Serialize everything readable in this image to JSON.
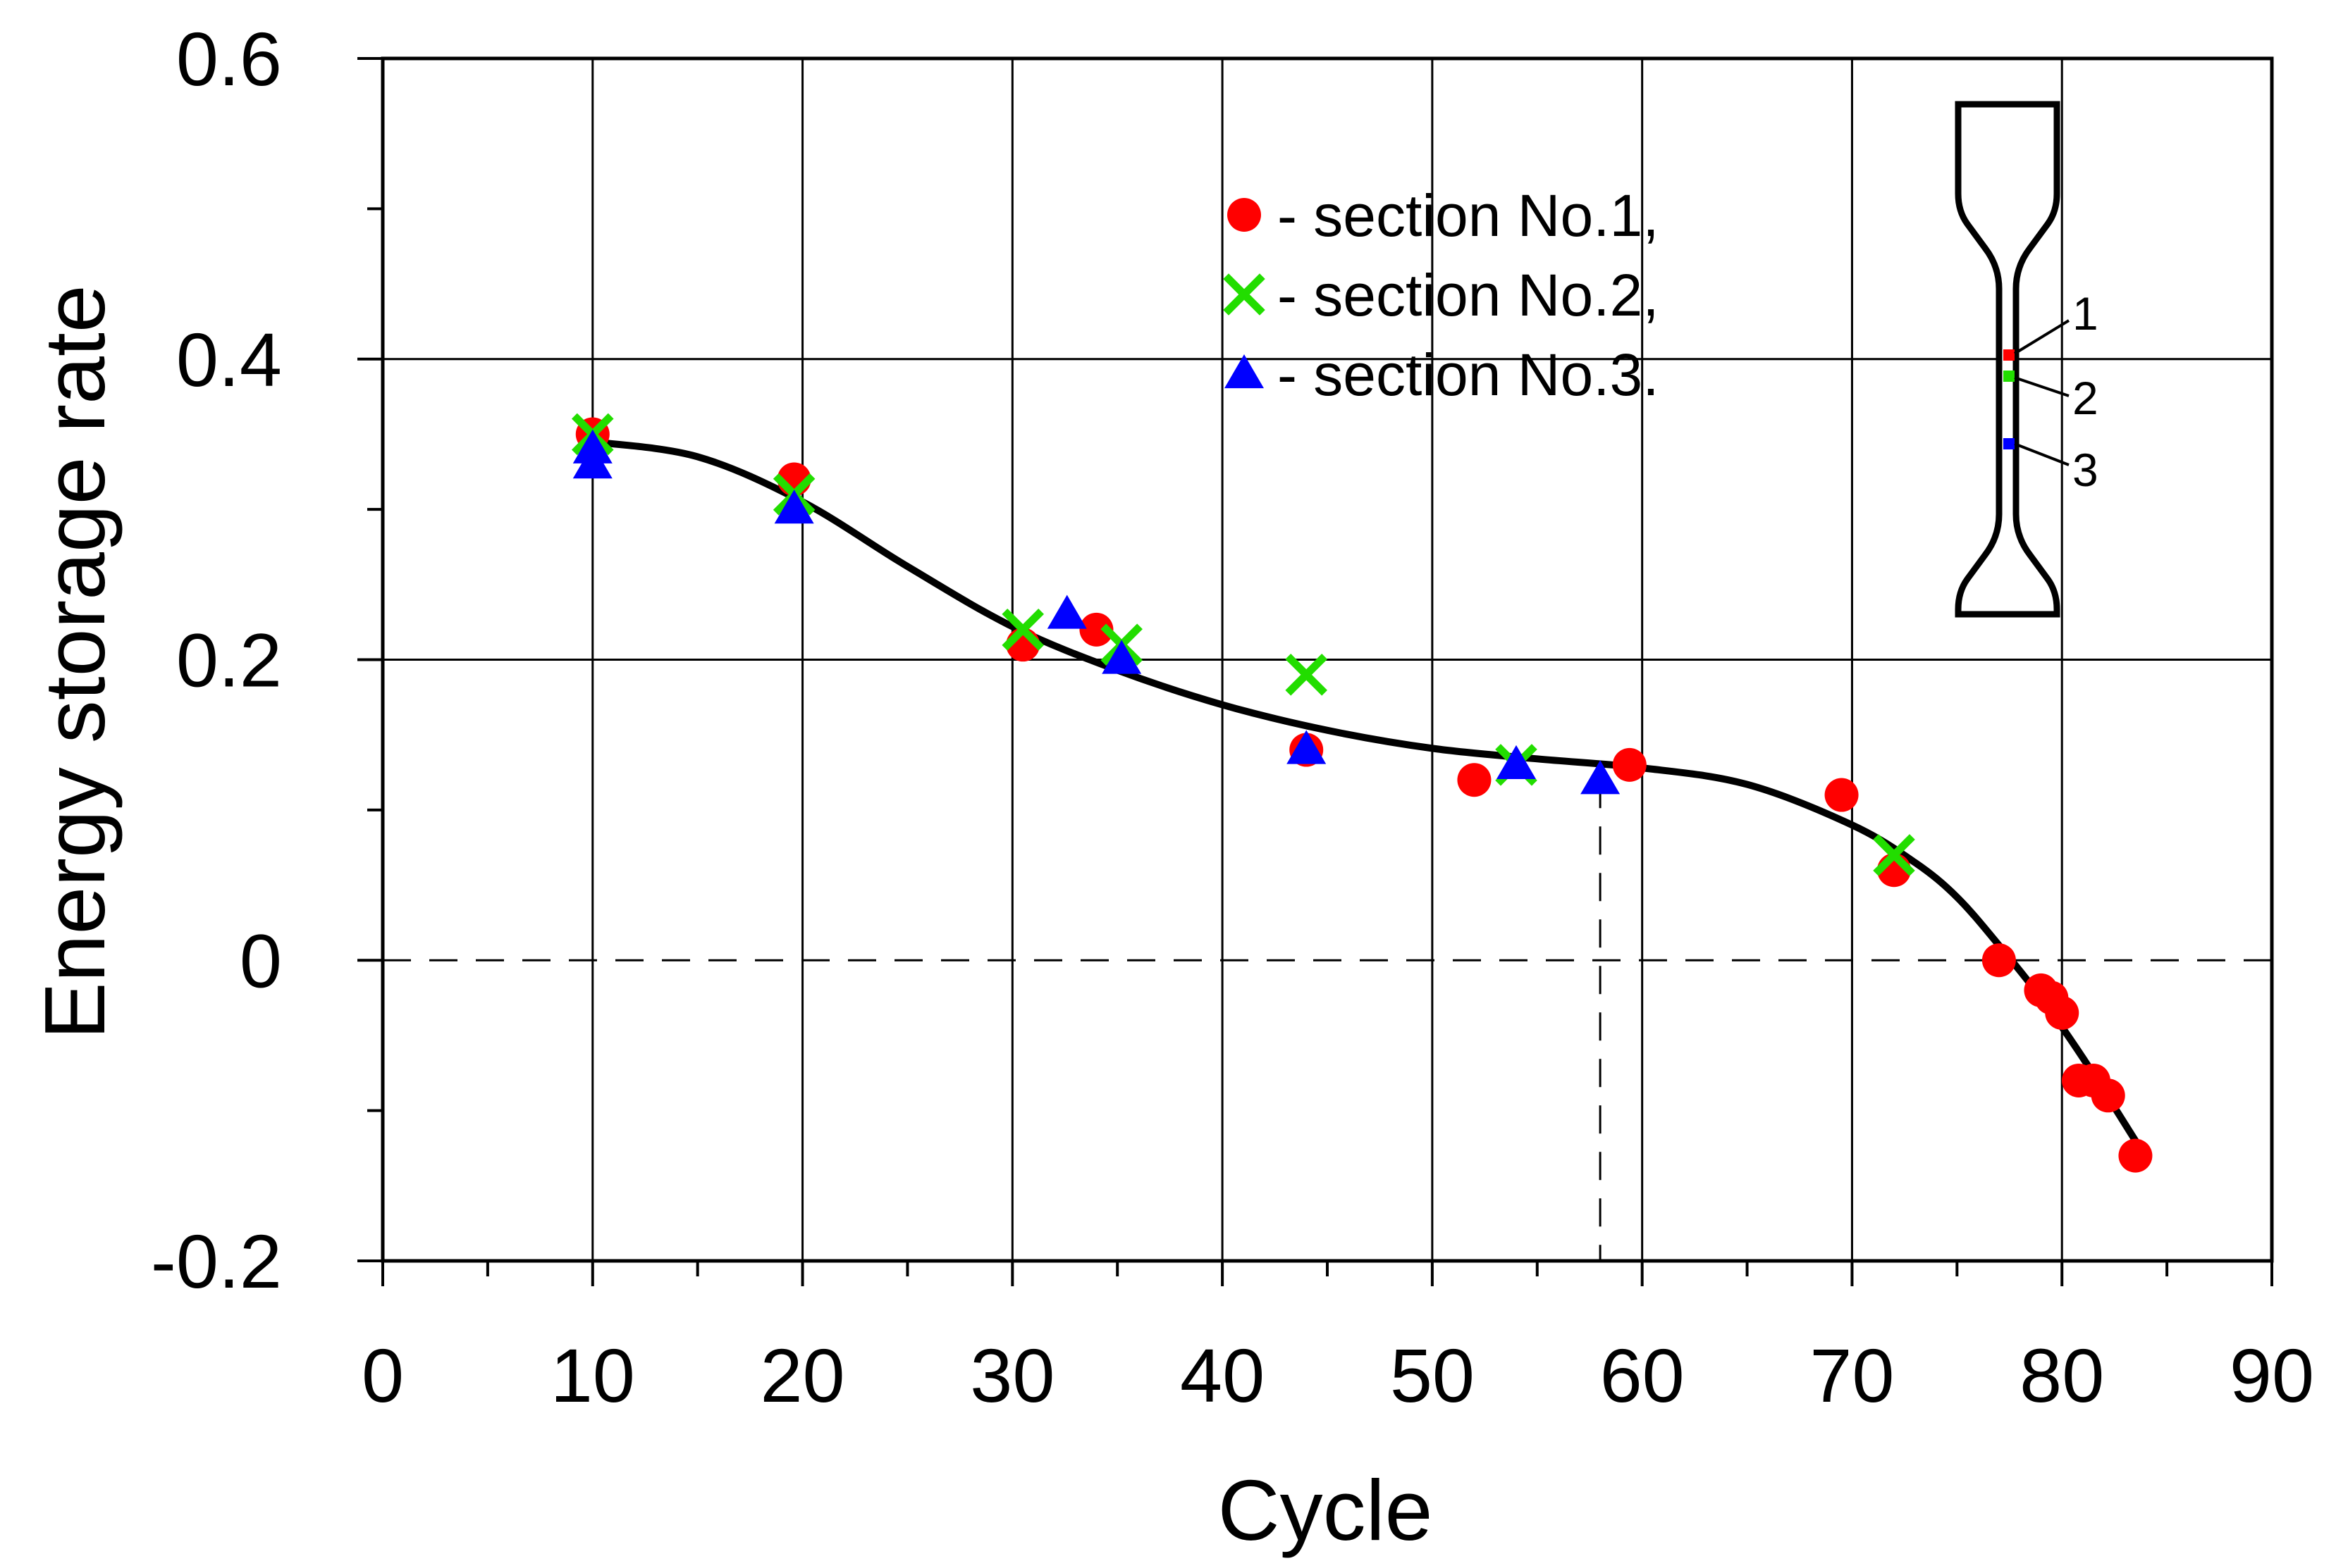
{
  "chart_data": {
    "type": "scatter",
    "title": "",
    "xlabel": "Cycle",
    "ylabel": "Energy storage rate",
    "xlim": [
      0,
      90
    ],
    "ylim": [
      -0.2,
      0.6
    ],
    "x_ticks": [
      0,
      10,
      20,
      30,
      40,
      50,
      60,
      70,
      80,
      90
    ],
    "x_tick_labels": [
      "0",
      "10",
      "20",
      "30",
      "40",
      "50",
      "60",
      "70",
      "80",
      "90"
    ],
    "y_ticks": [
      -0.2,
      0,
      0.2,
      0.4,
      0.6
    ],
    "y_tick_labels": [
      "-0.2",
      "0",
      "0.2",
      "0.4",
      "0.6"
    ],
    "grid": true,
    "legend_position": "top-right",
    "series": [
      {
        "name": "- section No.1,",
        "marker": "circle",
        "color": "#ff0000",
        "points": [
          [
            10,
            0.35
          ],
          [
            19.6,
            0.32
          ],
          [
            30.5,
            0.21
          ],
          [
            34,
            0.22
          ],
          [
            44,
            0.14
          ],
          [
            52,
            0.12
          ],
          [
            59.4,
            0.13
          ],
          [
            69.5,
            0.11
          ],
          [
            72,
            0.06
          ],
          [
            77,
            0.0
          ],
          [
            79,
            -0.02
          ],
          [
            79.5,
            -0.025
          ],
          [
            80,
            -0.035
          ],
          [
            80.8,
            -0.08
          ],
          [
            81.5,
            -0.08
          ],
          [
            82.2,
            -0.09
          ],
          [
            83.5,
            -0.13
          ]
        ]
      },
      {
        "name": "- section No.2,",
        "marker": "cross",
        "color": "#22dd00",
        "points": [
          [
            10,
            0.35
          ],
          [
            19.6,
            0.31
          ],
          [
            30.5,
            0.22
          ],
          [
            35.2,
            0.21
          ],
          [
            44,
            0.19
          ],
          [
            54,
            0.13
          ],
          [
            72,
            0.07
          ]
        ]
      },
      {
        "name": "- section No.3.",
        "marker": "triangle",
        "color": "#0000ff",
        "points": [
          [
            10,
            0.34
          ],
          [
            10,
            0.33
          ],
          [
            19.6,
            0.3
          ],
          [
            32.6,
            0.23
          ],
          [
            35.2,
            0.2
          ],
          [
            44,
            0.14
          ],
          [
            54,
            0.13
          ],
          [
            58,
            0.12
          ]
        ]
      }
    ],
    "fit_curve": {
      "name": "fit",
      "color": "#000000",
      "points": [
        [
          10,
          0.345
        ],
        [
          15,
          0.335
        ],
        [
          20,
          0.305
        ],
        [
          25,
          0.262
        ],
        [
          30,
          0.222
        ],
        [
          35,
          0.193
        ],
        [
          40,
          0.17
        ],
        [
          45,
          0.153
        ],
        [
          50,
          0.141
        ],
        [
          55,
          0.134
        ],
        [
          60,
          0.128
        ],
        [
          65,
          0.117
        ],
        [
          70,
          0.09
        ],
        [
          73,
          0.065
        ],
        [
          75,
          0.042
        ],
        [
          77,
          0.01
        ],
        [
          79,
          -0.025
        ],
        [
          81,
          -0.065
        ],
        [
          83.5,
          -0.12
        ]
      ]
    },
    "reference_lines": {
      "horizontal_dashed_y": 0,
      "vertical_dashed_x": 58
    },
    "inset": {
      "labels": [
        "1",
        "2",
        "3"
      ],
      "marker_colors": [
        "#ff0000",
        "#22dd00",
        "#0000ff"
      ]
    }
  }
}
